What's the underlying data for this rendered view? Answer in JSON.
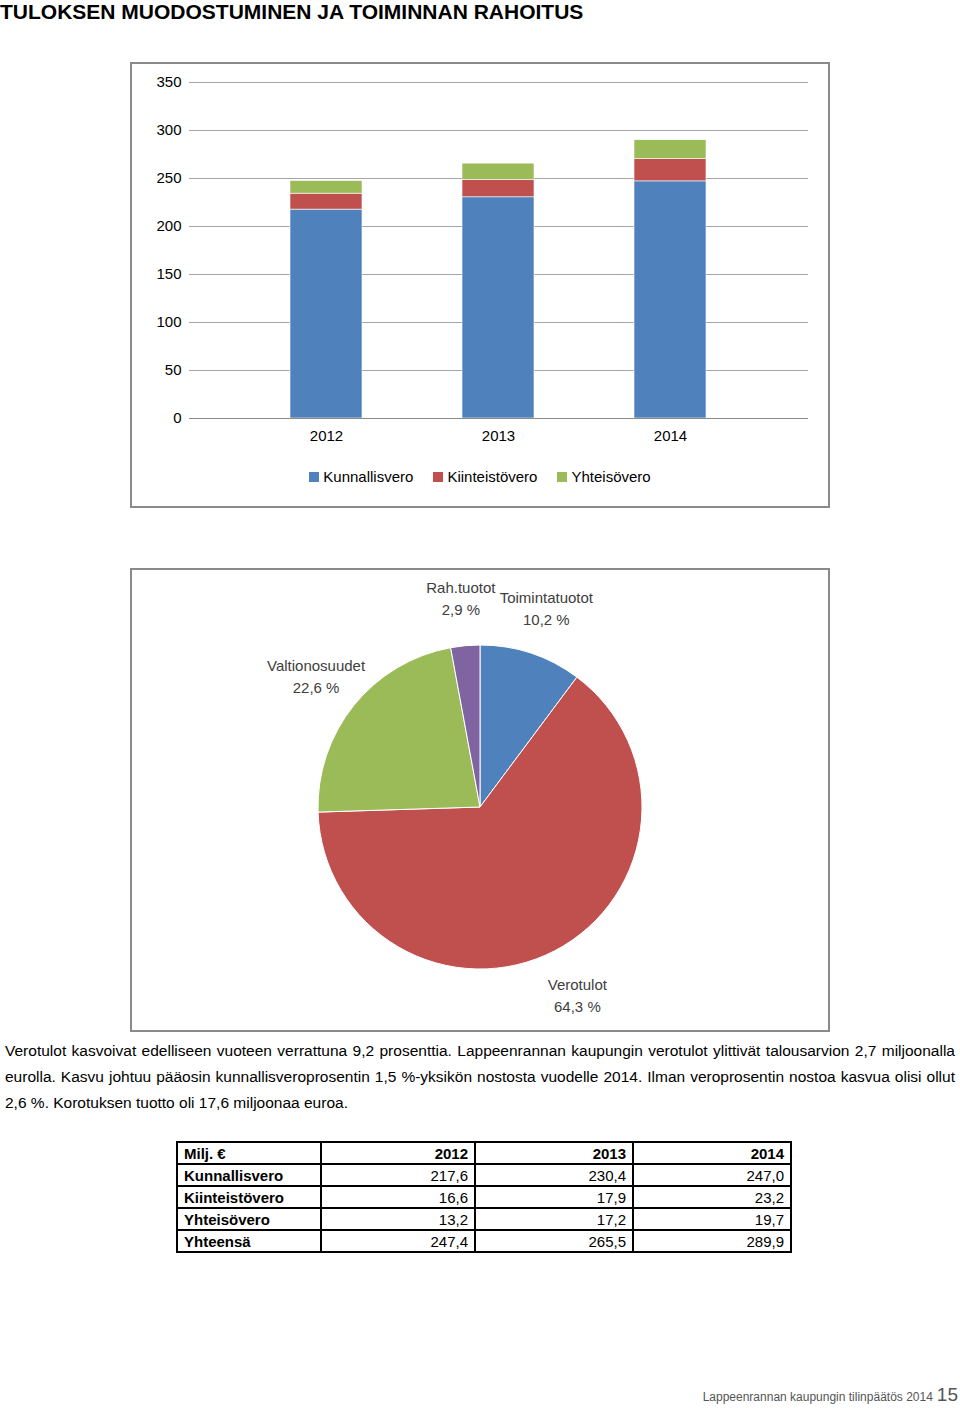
{
  "title": "TULOKSEN MUODOSTUMINEN JA TOIMINNAN RAHOITUS",
  "chart_data": [
    {
      "type": "bar",
      "stacked": true,
      "categories": [
        "2012",
        "2013",
        "2014"
      ],
      "series": [
        {
          "name": "Kunnallisvero",
          "color": "#4f81bd",
          "values": [
            217.6,
            230.4,
            247.0
          ]
        },
        {
          "name": "Kiinteistövero",
          "color": "#c0504d",
          "values": [
            16.6,
            17.9,
            23.2
          ]
        },
        {
          "name": "Yhteisövero",
          "color": "#9bbb59",
          "values": [
            13.2,
            17.2,
            19.7
          ]
        }
      ],
      "ylim": [
        0,
        350
      ],
      "yticks": [
        0,
        50,
        100,
        150,
        200,
        250,
        300,
        350
      ],
      "grid": true,
      "legend": "bottom"
    },
    {
      "type": "pie",
      "categories": [
        "Toimintatuotot",
        "Verotulot",
        "Valtionosuudet",
        "Rah.tuotot"
      ],
      "values": [
        10.2,
        64.3,
        22.6,
        2.9
      ],
      "value_labels": [
        "10,2 %",
        "64,3 %",
        "22,6 %",
        "2,9 %"
      ],
      "colors": [
        "#4f81bd",
        "#c0504d",
        "#9bbb59",
        "#8064a2"
      ],
      "data_labels": true
    }
  ],
  "text": "Verotulot kasvoivat edelliseen vuoteen verrattuna 9,2 prosenttia. Lappeenrannan kaupungin verotulot ylittivät talousarvion 2,7 miljoonalla eurolla. Kasvu johtuu pääosin kunnallisveroprosentin 1,5 %-yksikön nostosta vuodelle 2014. Ilman veroprosentin nostoa kasvua olisi ollut 2,6 %. Korotuksen tuotto oli 17,6 miljoonaa euroa.",
  "table": {
    "header": [
      "Milj. €",
      "2012",
      "2013",
      "2014"
    ],
    "rows": [
      [
        "Kunnallisvero",
        "217,6",
        "230,4",
        "247,0"
      ],
      [
        "Kiinteistövero",
        "16,6",
        "17,9",
        "23,2"
      ],
      [
        "Yhteisövero",
        "13,2",
        "17,2",
        "19,7"
      ],
      [
        "Yhteensä",
        "247,4",
        "265,5",
        "289,9"
      ]
    ]
  },
  "footer": {
    "text": "Lappeenrannan kaupungin tilinpäätös 2014",
    "page": "15"
  }
}
